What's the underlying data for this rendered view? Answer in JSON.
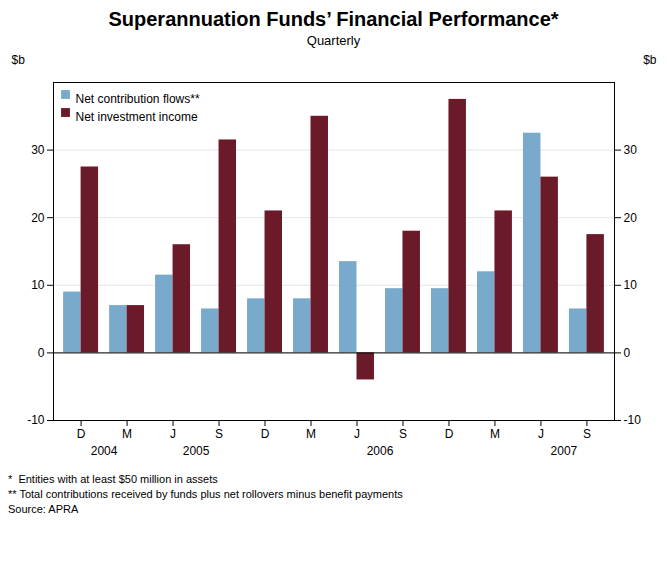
{
  "chart_data": {
    "type": "bar",
    "title": "Superannuation Funds’ Financial Performance*",
    "subtitle": "Quarterly",
    "categories": [
      "D",
      "M",
      "J",
      "S",
      "D",
      "M",
      "J",
      "S",
      "D",
      "M",
      "J",
      "S"
    ],
    "series": [
      {
        "name": "Net contribution flows**",
        "color": "#7aaacb",
        "values": [
          9.0,
          7.0,
          11.5,
          6.5,
          8.0,
          8.0,
          13.5,
          9.5,
          9.5,
          12.0,
          32.5,
          6.5
        ]
      },
      {
        "name": "Net investment income",
        "color": "#6b1a2a",
        "values": [
          27.5,
          7.0,
          16.0,
          31.5,
          21.0,
          35.0,
          -4.0,
          18.0,
          37.5,
          21.0,
          26.0,
          17.5
        ]
      }
    ],
    "ylabel": "$b",
    "y2label": "$b",
    "ylim": [
      -10,
      40
    ],
    "yticks": [
      -10,
      0,
      10,
      20,
      30
    ],
    "y2lim": [
      -10,
      40
    ],
    "y2ticks": [
      -10,
      0,
      10,
      20,
      30
    ],
    "grid": true,
    "legend": "upper left",
    "annotations": [
      {
        "text": "2004",
        "x": 0.5
      },
      {
        "text": "2005",
        "x": 2.5
      },
      {
        "text": "2006",
        "x": 6.5
      },
      {
        "text": "2007",
        "x": 10.5
      }
    ],
    "footnotes": [
      "*  Entities with at least $50 million in assets",
      "** Total contributions received by funds plus net rollovers minus benefit payments",
      "Source: APRA"
    ]
  }
}
